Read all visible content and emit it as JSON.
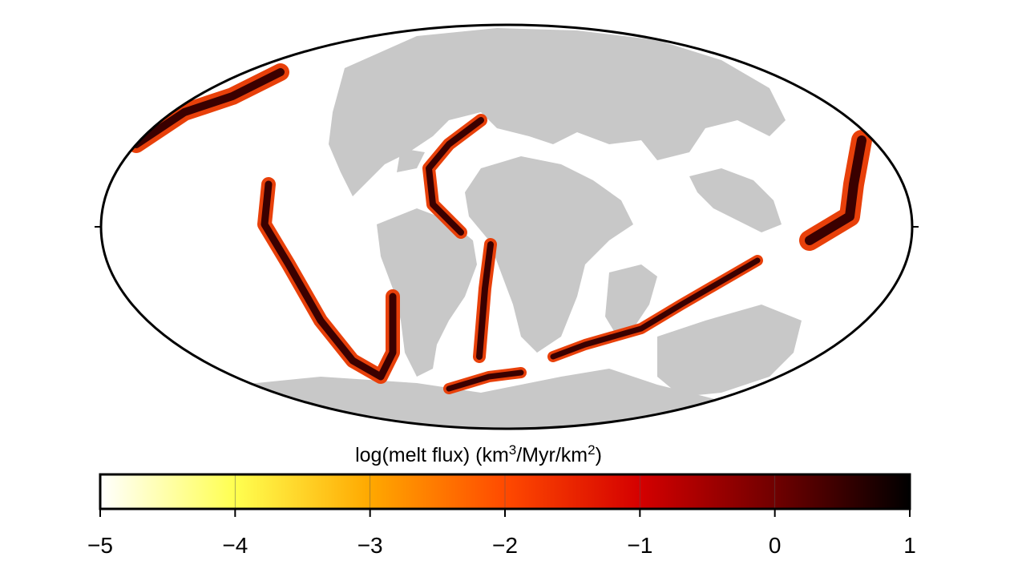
{
  "colorbar": {
    "label": {
      "text": "log(melt flux) (km",
      "sup1": "3",
      "mid": "/Myr/km",
      "sup2": "2",
      "end": ")"
    },
    "range": [
      -5,
      1
    ],
    "ticks": [
      {
        "value": -5,
        "label": "−5"
      },
      {
        "value": -4,
        "label": "−4"
      },
      {
        "value": -3,
        "label": "−3"
      },
      {
        "value": -2,
        "label": "−2"
      },
      {
        "value": -1,
        "label": "−1"
      },
      0,
      1
    ],
    "colormap": [
      {
        "value": -5,
        "color": "#ffffff"
      },
      {
        "value": -4,
        "color": "#ffff50"
      },
      {
        "value": -3,
        "color": "#ffa800"
      },
      {
        "value": -2,
        "color": "#ff4a00"
      },
      {
        "value": -1,
        "color": "#d40000"
      },
      {
        "value": 0,
        "color": "#700000"
      },
      {
        "value": 1,
        "color": "#000000"
      }
    ]
  }
}
